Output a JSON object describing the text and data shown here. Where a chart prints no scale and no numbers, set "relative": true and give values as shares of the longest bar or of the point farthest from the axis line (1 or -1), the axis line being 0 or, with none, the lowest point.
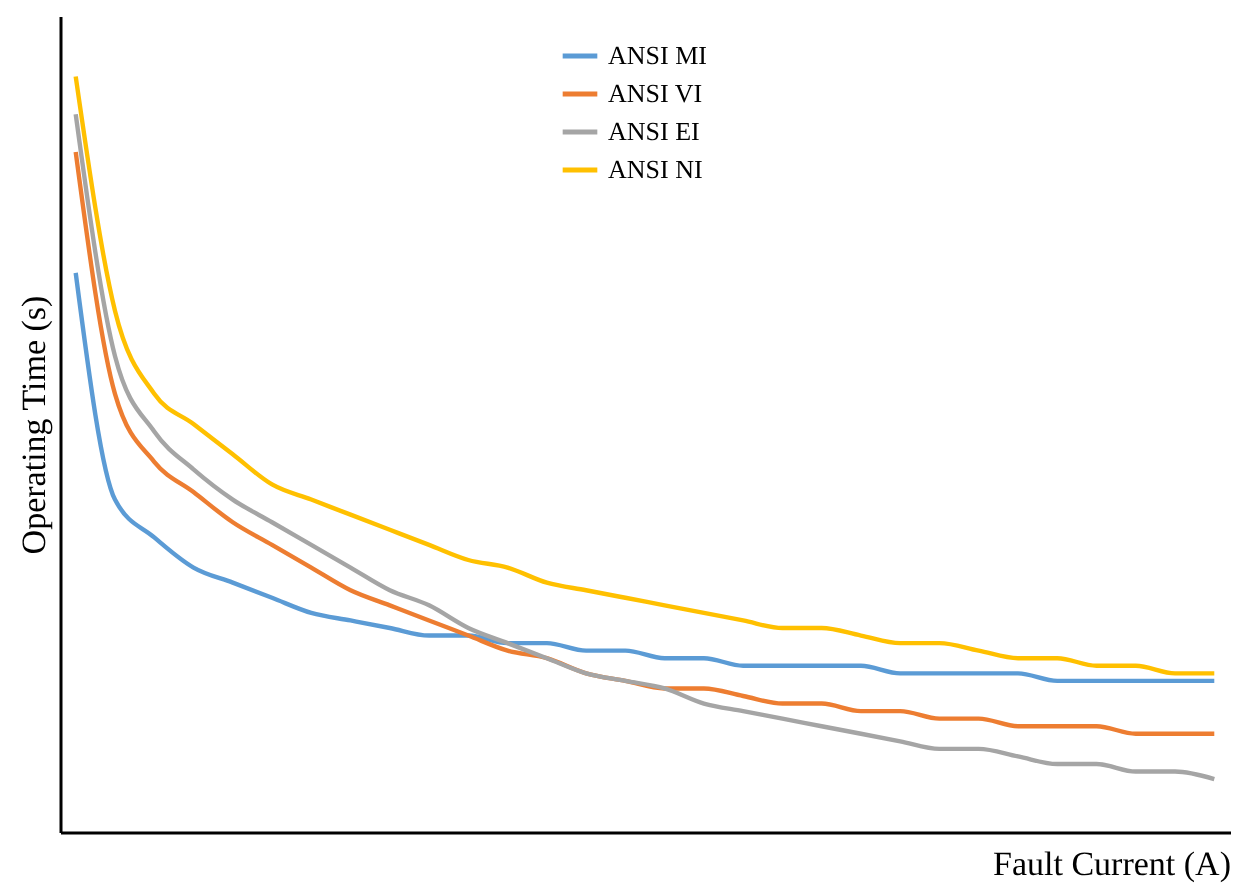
{
  "chart_data": {
    "type": "line",
    "relative": true,
    "xlabel": "Fault Current (A)",
    "ylabel": "Operating Time (s)",
    "legend": "top",
    "grid": false,
    "marker": "none",
    "line_style": "solid",
    "categories": [
      null,
      null,
      null,
      null,
      null,
      null,
      null,
      null,
      null,
      null,
      null,
      null,
      null,
      null,
      null,
      null,
      null,
      null,
      null,
      null,
      null,
      null,
      null,
      null,
      null,
      null,
      null,
      null,
      null,
      null
    ],
    "series": [
      {
        "name": "ANSI MI",
        "color": "#5b9bd5",
        "values": [
          0.74,
          0.44,
          0.39,
          0.35,
          0.33,
          0.31,
          0.29,
          0.28,
          0.27,
          0.26,
          0.26,
          0.25,
          0.25,
          0.24,
          0.24,
          0.23,
          0.23,
          0.22,
          0.22,
          0.22,
          0.22,
          0.21,
          0.21,
          0.21,
          0.21,
          0.2,
          0.2,
          0.2,
          0.2,
          0.2
        ]
      },
      {
        "name": "ANSI VI",
        "color": "#ed7d31",
        "values": [
          0.9,
          0.58,
          0.49,
          0.45,
          0.41,
          0.38,
          0.35,
          0.32,
          0.3,
          0.28,
          0.26,
          0.24,
          0.23,
          0.21,
          0.2,
          0.19,
          0.19,
          0.18,
          0.17,
          0.17,
          0.16,
          0.16,
          0.15,
          0.15,
          0.14,
          0.14,
          0.14,
          0.13,
          0.13,
          0.13
        ]
      },
      {
        "name": "ANSI EI",
        "color": "#a5a5a5",
        "values": [
          0.95,
          0.63,
          0.53,
          0.48,
          0.44,
          0.41,
          0.38,
          0.35,
          0.32,
          0.3,
          0.27,
          0.25,
          0.23,
          0.21,
          0.2,
          0.19,
          0.17,
          0.16,
          0.15,
          0.14,
          0.13,
          0.12,
          0.11,
          0.11,
          0.1,
          0.09,
          0.09,
          0.08,
          0.08,
          0.07
        ]
      },
      {
        "name": "ANSI NI",
        "color": "#ffc000",
        "values": [
          1.0,
          0.69,
          0.58,
          0.54,
          0.5,
          0.46,
          0.44,
          0.42,
          0.4,
          0.38,
          0.36,
          0.35,
          0.33,
          0.32,
          0.31,
          0.3,
          0.29,
          0.28,
          0.27,
          0.27,
          0.26,
          0.25,
          0.25,
          0.24,
          0.23,
          0.23,
          0.22,
          0.22,
          0.21,
          0.21
        ]
      }
    ]
  }
}
